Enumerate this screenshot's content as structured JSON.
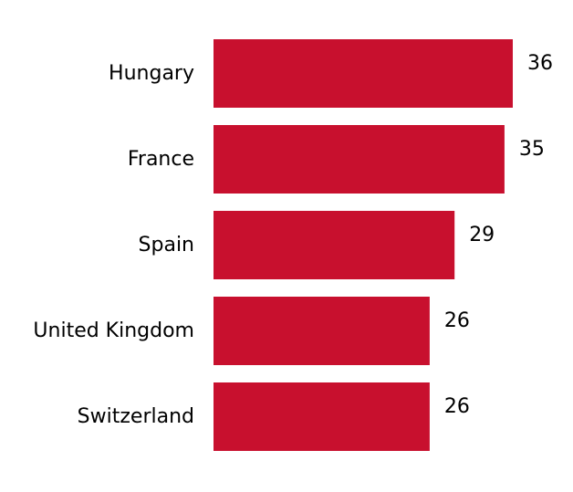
{
  "chart_data": {
    "type": "bar",
    "orientation": "horizontal",
    "categories": [
      "Hungary",
      "France",
      "Spain",
      "United Kingdom",
      "Switzerland"
    ],
    "values": [
      36,
      35,
      29,
      26,
      26
    ],
    "value_labels": [
      "36",
      "35",
      "29",
      "26",
      "26"
    ],
    "bar_color": "#c8102e",
    "title": "",
    "xlabel": "",
    "ylabel": "",
    "xlim": [
      0,
      36
    ],
    "grid": false,
    "legend": "none"
  }
}
